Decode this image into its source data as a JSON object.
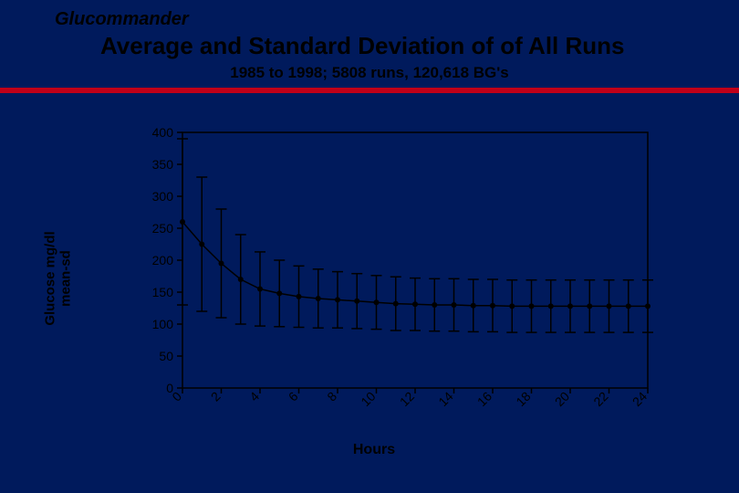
{
  "header": {
    "program": "Glucommander",
    "title": "Average and Standard Deviation of of All Runs",
    "subtitle": "1985 to 1998;  5808 runs, 120,618 BG's"
  },
  "chart": {
    "type": "line-errorbar",
    "background_color": "#001a5c",
    "plot_border_color": "#000000",
    "text_color": "#000000",
    "line_color": "#000000",
    "marker_color": "#000000",
    "marker_style": "circle-filled",
    "marker_size": 6,
    "line_width": 1.5,
    "errorbar_cap_width": 12,
    "errorbar_line_width": 1.5,
    "yaxis": {
      "label_line1": "Glucose  mg/dl",
      "label_line2": "mean-sd",
      "min": 0,
      "max": 400,
      "tick_step": 50,
      "ticks": [
        0,
        50,
        100,
        150,
        200,
        250,
        300,
        350,
        400
      ],
      "tick_fontsize": 14,
      "label_fontsize": 15
    },
    "xaxis": {
      "label": "Hours",
      "min": 0,
      "max": 24,
      "tick_step": 2,
      "ticks": [
        0,
        2,
        4,
        6,
        8,
        10,
        12,
        14,
        16,
        18,
        20,
        22,
        24
      ],
      "tick_rotation_deg": -45,
      "tick_fontsize": 14,
      "label_fontsize": 16
    },
    "series": {
      "x": [
        0,
        1,
        2,
        3,
        4,
        5,
        6,
        7,
        8,
        9,
        10,
        11,
        12,
        13,
        14,
        15,
        16,
        17,
        18,
        19,
        20,
        21,
        22,
        23,
        24
      ],
      "mean": [
        260,
        225,
        195,
        170,
        155,
        148,
        143,
        140,
        138,
        136,
        134,
        132,
        131,
        130,
        130,
        129,
        129,
        128,
        128,
        128,
        128,
        128,
        128,
        128,
        128
      ],
      "sd": [
        130,
        105,
        85,
        70,
        58,
        52,
        48,
        46,
        44,
        43,
        42,
        42,
        41,
        41,
        41,
        41,
        41,
        41,
        41,
        41,
        41,
        41,
        41,
        41,
        41
      ]
    }
  }
}
